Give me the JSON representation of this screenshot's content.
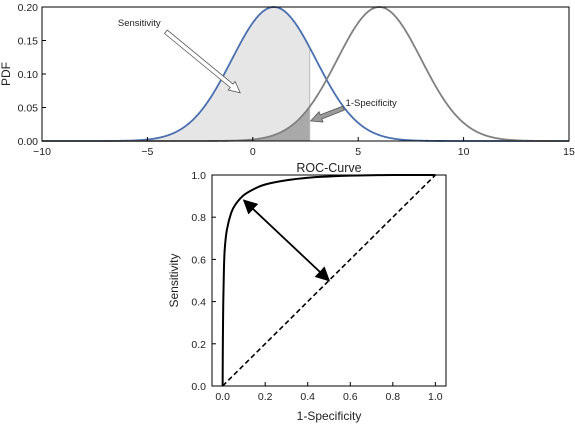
{
  "colors": {
    "pdf_positive": "#4a6fb0",
    "pdf_negative": "#808080",
    "sensitivity_fill": "#e6e6e6",
    "specificity_fill": "#a9a9a9",
    "roc_curve": "#000000"
  },
  "chart_data": [
    {
      "type": "line",
      "ylabel": "PDF",
      "xlabel": "",
      "title": "",
      "xlim": [
        -10,
        15
      ],
      "ylim": [
        0,
        0.2
      ],
      "xticks": [
        -10,
        -5,
        0,
        5,
        10,
        15
      ],
      "xtick_labels": [
        "−10",
        "−5",
        "0",
        "5",
        "10",
        "15"
      ],
      "yticks": [
        0,
        0.05,
        0.1,
        0.15,
        0.2
      ],
      "ytick_labels": [
        "0.00",
        "0.05",
        "0.10",
        "0.15",
        "0.20"
      ],
      "grid": false,
      "threshold": 2.7,
      "series": [
        {
          "mean": 1,
          "sd": 2,
          "peak": 0.2,
          "color": "#4a6fb0"
        },
        {
          "mean": 6,
          "sd": 2,
          "peak": 0.2,
          "color": "#808080"
        }
      ],
      "annotations": [
        {
          "text": "Sensitivity",
          "text_xy": [
            -6.4,
            0.172
          ],
          "arrow_to": [
            -0.6,
            0.072
          ]
        },
        {
          "text": "1-Specificity",
          "text_xy": [
            4.4,
            0.052
          ],
          "arrow_to": [
            2.7,
            0.03
          ]
        }
      ]
    },
    {
      "type": "line",
      "title": "ROC-Curve",
      "xlabel": "1-Specificity",
      "ylabel": "Sensitivity",
      "xlim": [
        -0.05,
        1.05
      ],
      "ylim": [
        0,
        1
      ],
      "xticks": [
        0,
        0.2,
        0.4,
        0.6,
        0.8,
        1.0
      ],
      "xtick_labels": [
        "0.0",
        "0.2",
        "0.4",
        "0.6",
        "0.8",
        "1.0"
      ],
      "yticks": [
        0,
        0.2,
        0.4,
        0.6,
        0.8,
        1.0
      ],
      "ytick_labels": [
        "0.0",
        "0.2",
        "0.4",
        "0.6",
        "0.8",
        "1.0"
      ],
      "grid": false,
      "roc_points": [
        [
          0.0,
          0.0
        ],
        [
          0.001,
          0.2
        ],
        [
          0.003,
          0.4
        ],
        [
          0.006,
          0.55
        ],
        [
          0.01,
          0.65
        ],
        [
          0.02,
          0.74
        ],
        [
          0.04,
          0.82
        ],
        [
          0.06,
          0.86
        ],
        [
          0.1,
          0.905
        ],
        [
          0.15,
          0.935
        ],
        [
          0.2,
          0.955
        ],
        [
          0.3,
          0.975
        ],
        [
          0.4,
          0.987
        ],
        [
          0.5,
          0.993
        ],
        [
          0.6,
          0.997
        ],
        [
          0.8,
          1.0
        ],
        [
          1.0,
          1.0
        ]
      ],
      "chance_line": [
        [
          0.0,
          0.0
        ],
        [
          1.0,
          1.0
        ]
      ],
      "double_arrow": [
        [
          0.1,
          0.88
        ],
        [
          0.5,
          0.5
        ]
      ]
    }
  ]
}
